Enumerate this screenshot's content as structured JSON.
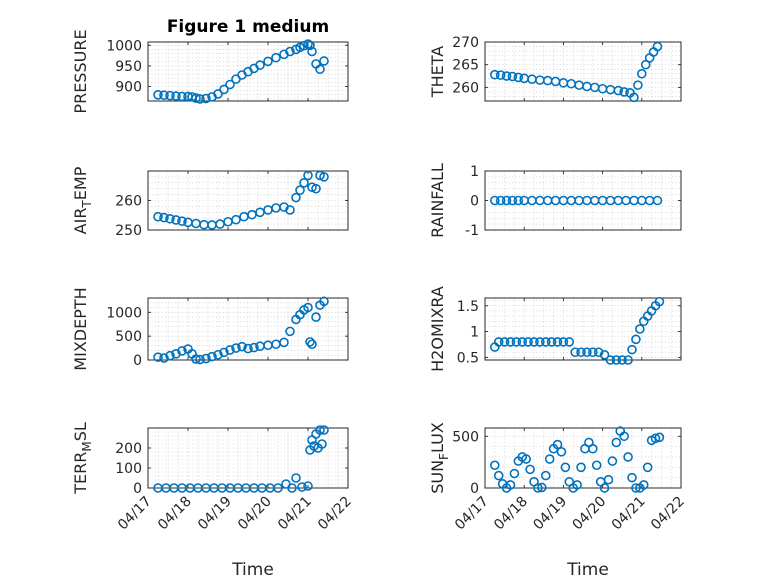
{
  "window": {
    "title": "Figure 1 medium"
  },
  "colors": {
    "series": "#0072BD",
    "axis": "#262626",
    "grid": "#c8c8c8"
  },
  "x_axis": {
    "xlabel": "Time",
    "tick_labels": [
      "04/17",
      "04/18",
      "04/19",
      "04/20",
      "04/21",
      "04/22"
    ],
    "tick_values": [
      0,
      1,
      2,
      3,
      4,
      5
    ],
    "xlim": [
      0,
      5
    ]
  },
  "chart_data": [
    {
      "type": "scatter",
      "title": "Figure 1 medium",
      "ylabel": "PRESSURE",
      "ylim": [
        865,
        1008
      ],
      "yticks": [
        900,
        950,
        1000
      ],
      "grid": true,
      "series": [
        {
          "x": [
            0.25,
            0.4,
            0.55,
            0.7,
            0.85,
            1.0,
            1.1,
            1.2,
            1.3,
            1.45,
            1.6,
            1.75,
            1.9,
            2.05,
            2.2,
            2.35,
            2.5,
            2.65,
            2.8,
            3.0,
            3.2,
            3.4,
            3.55,
            3.7,
            3.8,
            3.9,
            4.0,
            4.05,
            4.1,
            4.2,
            4.3,
            4.4
          ],
          "y": [
            880,
            879,
            878,
            877,
            876,
            876,
            875,
            872,
            870,
            871,
            875,
            882,
            893,
            905,
            918,
            928,
            936,
            944,
            952,
            961,
            970,
            978,
            985,
            990,
            995,
            999,
            1003,
            1000,
            985,
            955,
            942,
            962
          ]
        }
      ]
    },
    {
      "type": "scatter",
      "ylabel": "THETA",
      "ylim": [
        257,
        270
      ],
      "yticks": [
        260,
        265,
        270
      ],
      "grid": true,
      "series": [
        {
          "x": [
            0.25,
            0.4,
            0.55,
            0.7,
            0.85,
            1.0,
            1.2,
            1.4,
            1.6,
            1.8,
            2.0,
            2.2,
            2.4,
            2.6,
            2.8,
            3.0,
            3.2,
            3.4,
            3.55,
            3.7,
            3.8,
            3.9,
            4.0,
            4.1,
            4.2,
            4.3,
            4.4
          ],
          "y": [
            262.8,
            262.7,
            262.5,
            262.4,
            262.2,
            262.0,
            261.8,
            261.6,
            261.5,
            261.3,
            261.0,
            260.8,
            260.5,
            260.2,
            260.0,
            259.7,
            259.5,
            259.3,
            259.0,
            258.8,
            257.8,
            260.5,
            263.0,
            265.0,
            266.5,
            267.8,
            269.0
          ]
        }
      ]
    },
    {
      "type": "scatter",
      "ylabel": "AIR_TEMP",
      "ylim": [
        250,
        270
      ],
      "yticks": [
        250,
        260
      ],
      "grid": true,
      "series": [
        {
          "x": [
            0.25,
            0.4,
            0.55,
            0.7,
            0.85,
            1.0,
            1.2,
            1.4,
            1.6,
            1.8,
            2.0,
            2.2,
            2.4,
            2.6,
            2.8,
            3.0,
            3.2,
            3.4,
            3.55,
            3.7,
            3.8,
            3.9,
            4.0,
            4.1,
            4.2,
            4.3,
            4.4
          ],
          "y": [
            254.5,
            254.2,
            253.8,
            253.4,
            253.0,
            252.6,
            252.2,
            251.8,
            251.7,
            252.0,
            252.8,
            253.5,
            254.5,
            255.2,
            256.0,
            256.8,
            257.5,
            257.8,
            256.8,
            261.0,
            263.5,
            266.0,
            268.5,
            264.5,
            264.0,
            268.5,
            268.0
          ]
        }
      ]
    },
    {
      "type": "scatter",
      "ylabel": "RAINFALL",
      "ylim": [
        -1,
        1
      ],
      "yticks": [
        -1,
        0,
        1
      ],
      "grid": true,
      "series": [
        {
          "x": [
            0.25,
            0.4,
            0.55,
            0.7,
            0.85,
            1.0,
            1.2,
            1.4,
            1.6,
            1.8,
            2.0,
            2.2,
            2.4,
            2.6,
            2.8,
            3.0,
            3.2,
            3.4,
            3.6,
            3.8,
            4.0,
            4.2,
            4.4
          ],
          "y": [
            0,
            0,
            0,
            0,
            0,
            0,
            0,
            0,
            0,
            0,
            0,
            0,
            0,
            0,
            0,
            0,
            0,
            0,
            0,
            0,
            0,
            0,
            0
          ]
        }
      ]
    },
    {
      "type": "scatter",
      "ylabel": "MIXDEPTH",
      "ylim": [
        0,
        1300
      ],
      "yticks": [
        0,
        500,
        1000
      ],
      "grid": true,
      "series": [
        {
          "x": [
            0.25,
            0.4,
            0.55,
            0.7,
            0.85,
            1.0,
            1.1,
            1.2,
            1.3,
            1.45,
            1.6,
            1.75,
            1.9,
            2.05,
            2.2,
            2.35,
            2.5,
            2.65,
            2.8,
            3.0,
            3.2,
            3.4,
            3.55,
            3.7,
            3.8,
            3.9,
            4.0,
            4.05,
            4.1,
            4.2,
            4.3,
            4.4
          ],
          "y": [
            60,
            40,
            90,
            130,
            190,
            230,
            130,
            20,
            10,
            30,
            70,
            110,
            160,
            210,
            250,
            280,
            240,
            260,
            290,
            310,
            330,
            370,
            600,
            850,
            950,
            1050,
            1100,
            380,
            330,
            900,
            1150,
            1230
          ]
        }
      ]
    },
    {
      "type": "scatter",
      "ylabel": "H2OMIXRA",
      "ylim": [
        0.45,
        1.65
      ],
      "yticks": [
        0.5,
        1,
        1.5
      ],
      "grid": true,
      "series": [
        {
          "x": [
            0.25,
            0.35,
            0.5,
            0.65,
            0.8,
            0.95,
            1.1,
            1.25,
            1.4,
            1.55,
            1.7,
            1.85,
            2.0,
            2.15,
            2.3,
            2.45,
            2.6,
            2.75,
            2.9,
            3.05,
            3.2,
            3.35,
            3.5,
            3.65,
            3.75,
            3.85,
            3.95,
            4.05,
            4.15,
            4.25,
            4.35,
            4.45
          ],
          "y": [
            0.7,
            0.8,
            0.8,
            0.8,
            0.8,
            0.8,
            0.8,
            0.8,
            0.8,
            0.8,
            0.8,
            0.8,
            0.8,
            0.8,
            0.6,
            0.6,
            0.6,
            0.6,
            0.6,
            0.55,
            0.45,
            0.45,
            0.45,
            0.45,
            0.65,
            0.85,
            1.05,
            1.2,
            1.3,
            1.4,
            1.5,
            1.58
          ]
        }
      ]
    },
    {
      "type": "scatter",
      "ylabel": "TERR_MSL",
      "ylim": [
        0,
        300
      ],
      "yticks": [
        0,
        100,
        200
      ],
      "grid": true,
      "series": [
        {
          "x": [
            0.25,
            0.45,
            0.65,
            0.85,
            1.05,
            1.25,
            1.45,
            1.65,
            1.85,
            2.05,
            2.25,
            2.45,
            2.65,
            2.85,
            3.05,
            3.25,
            3.45,
            3.6,
            3.7,
            3.85,
            4.0,
            4.05,
            4.1,
            4.15,
            4.2,
            4.25,
            4.3,
            4.35,
            4.4
          ],
          "y": [
            0,
            0,
            0,
            0,
            0,
            0,
            0,
            0,
            0,
            0,
            0,
            0,
            0,
            0,
            0,
            0,
            20,
            0,
            50,
            5,
            10,
            190,
            240,
            210,
            270,
            200,
            290,
            220,
            290
          ]
        }
      ]
    },
    {
      "type": "scatter",
      "ylabel": "SUN_FLUX",
      "ylim": [
        0,
        580
      ],
      "yticks": [
        0,
        500
      ],
      "grid": true,
      "series": [
        {
          "x": [
            0.25,
            0.35,
            0.45,
            0.55,
            0.65,
            0.75,
            0.85,
            0.95,
            1.05,
            1.15,
            1.25,
            1.35,
            1.45,
            1.55,
            1.65,
            1.75,
            1.85,
            1.95,
            2.05,
            2.15,
            2.25,
            2.35,
            2.45,
            2.55,
            2.65,
            2.75,
            2.85,
            2.95,
            3.05,
            3.15,
            3.25,
            3.35,
            3.45,
            3.55,
            3.65,
            3.75,
            3.85,
            3.95,
            4.05,
            4.15,
            4.25,
            4.35,
            4.45
          ],
          "y": [
            220,
            120,
            40,
            0,
            30,
            140,
            260,
            300,
            280,
            180,
            60,
            0,
            5,
            120,
            280,
            380,
            420,
            350,
            200,
            60,
            0,
            30,
            200,
            380,
            440,
            380,
            220,
            60,
            0,
            80,
            260,
            440,
            550,
            500,
            300,
            100,
            0,
            0,
            30,
            200,
            460,
            480,
            490
          ]
        }
      ]
    }
  ]
}
